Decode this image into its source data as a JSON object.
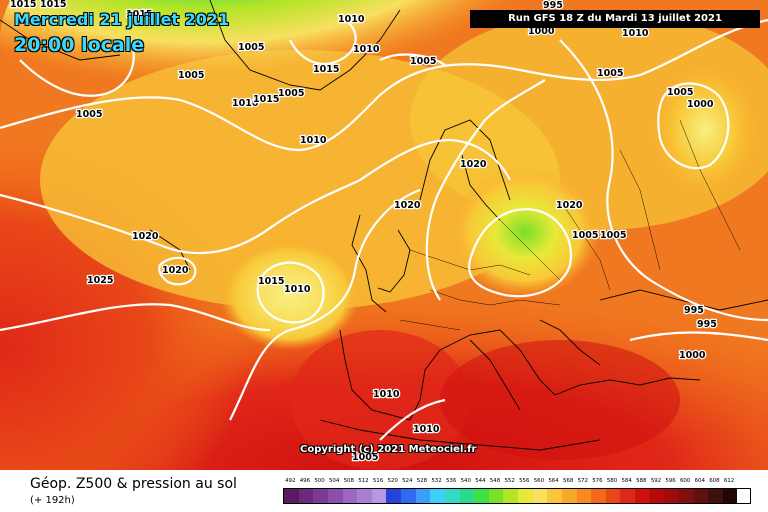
{
  "header": {
    "date_label": "Mercredi 21 juillet 2021",
    "time_label": "20:00 locale",
    "run_label": "Run GFS 18 Z du Mardi 13 juillet 2021"
  },
  "footer": {
    "title": "Géop. Z500 & pression au sol",
    "forecast_range": "(+ 192h)",
    "copyright": "Copyright (c) 2021 Meteociel.fr"
  },
  "pressure_labels": [
    "1015",
    "1015",
    "1015",
    "1005",
    "1010",
    "1010",
    "1015",
    "1005",
    "1010",
    "1005",
    "1005",
    "995",
    "1000",
    "1005",
    "1010",
    "1015",
    "1010",
    "1005",
    "1000",
    "1005",
    "1020",
    "1020",
    "1020",
    "1025",
    "1020",
    "1015",
    "1010",
    "1020",
    "1005",
    "1005",
    "995",
    "995",
    "1000",
    "1010",
    "1010",
    "1005"
  ],
  "legend": {
    "values": [
      "492",
      "496",
      "500",
      "504",
      "508",
      "512",
      "516",
      "520",
      "524",
      "528",
      "532",
      "536",
      "540",
      "544",
      "548",
      "552",
      "556",
      "560",
      "564",
      "568",
      "572",
      "576",
      "580",
      "584",
      "588",
      "592",
      "596",
      "600",
      "604",
      "608",
      "612"
    ],
    "colors": [
      "#5a1a60",
      "#6c2a7a",
      "#7d3a92",
      "#8a4fa8",
      "#9a68c0",
      "#a880d0",
      "#b49ade",
      "#2a40d8",
      "#2f6cf0",
      "#3d9cf8",
      "#3fd0f8",
      "#32d8c8",
      "#2cd88c",
      "#3ce048",
      "#7ae028",
      "#b8e428",
      "#e8e838",
      "#f8e060",
      "#f8c838",
      "#f8a828",
      "#f88a20",
      "#f06a18",
      "#e84818",
      "#e02818",
      "#d01010",
      "#b80808",
      "#a00c0c",
      "#801010",
      "#601010",
      "#401010",
      "#200808"
    ]
  },
  "colors": {
    "title_cyan": "#3ad8ff",
    "isobar": "#ffffff",
    "coast": "#000000"
  }
}
